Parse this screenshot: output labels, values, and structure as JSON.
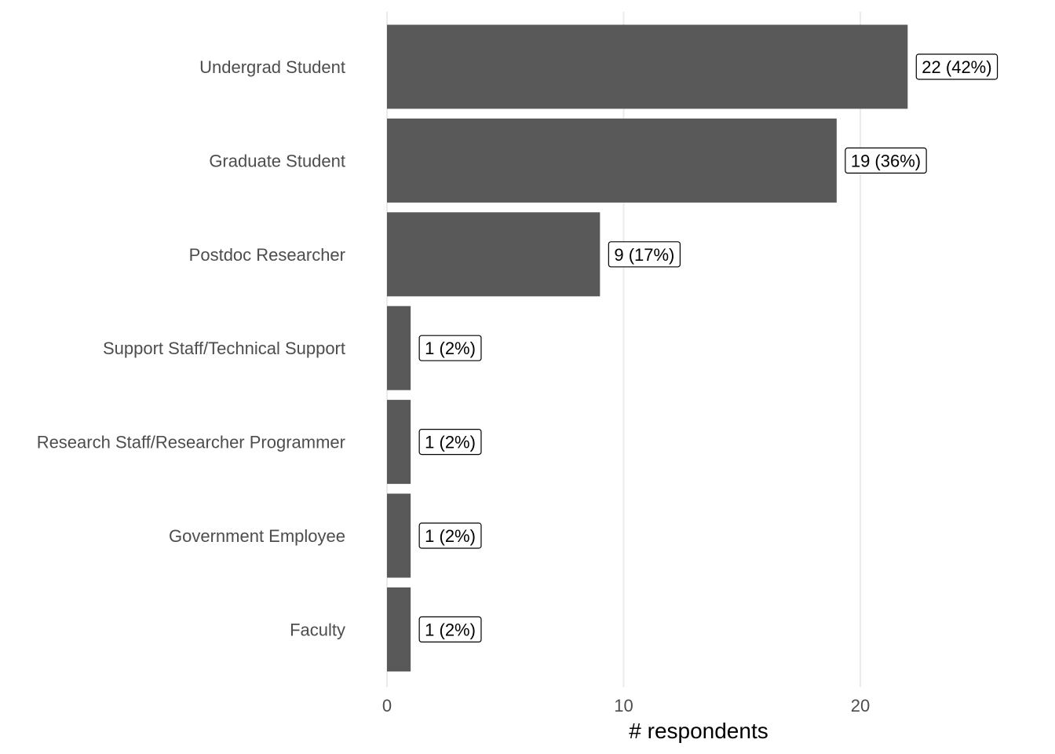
{
  "chart_data": {
    "type": "bar",
    "orientation": "horizontal",
    "categories": [
      "Undergrad Student",
      "Graduate Student",
      "Postdoc Researcher",
      "Support Staff/Technical Support",
      "Research Staff/Researcher Programmer",
      "Government Employee",
      "Faculty"
    ],
    "values": [
      22,
      19,
      9,
      1,
      1,
      1,
      1
    ],
    "data_labels": [
      "22 (42%)",
      "19 (36%)",
      "9 (17%)",
      "1 (2%)",
      "1 (2%)",
      "1 (2%)",
      "1 (2%)"
    ],
    "xlabel": "# respondents",
    "ylabel": "",
    "xlim": [
      0,
      26.5
    ],
    "x_ticks": [
      0,
      10,
      20
    ],
    "x_tick_labels": [
      "0",
      "10",
      "20"
    ],
    "grid": "vertical major lines",
    "legend": "none",
    "colors": {
      "bar": "#595959",
      "grid": "#ebebeb",
      "background": "#ffffff"
    }
  }
}
